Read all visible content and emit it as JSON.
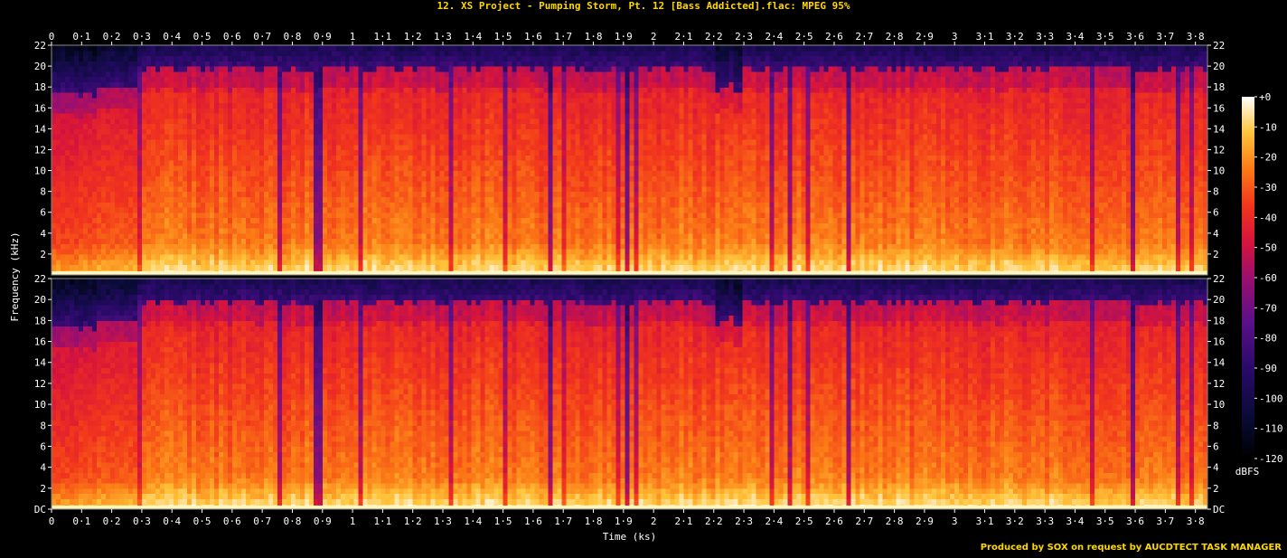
{
  "chart_data": {
    "type": "heatmap",
    "title": "12. XS Project - Pumping Storm, Pt. 12 [Bass Addicted].flac: MPEG 95%",
    "xlabel": "Time (ks)",
    "ylabel": "Frequency (kHz)",
    "xlim": [
      0,
      3.84
    ],
    "ylim": [
      0,
      22
    ],
    "x_ticks": [
      "0",
      "0·1",
      "0·2",
      "0·3",
      "0·4",
      "0·5",
      "0·6",
      "0·7",
      "0·8",
      "0·9",
      "1",
      "1·1",
      "1·2",
      "1·3",
      "1·4",
      "1·5",
      "1·6",
      "1·7",
      "1·8",
      "1·9",
      "2",
      "2·1",
      "2·2",
      "2·3",
      "2·4",
      "2·5",
      "2·6",
      "2·7",
      "2·8",
      "2·9",
      "3",
      "3·1",
      "3·2",
      "3·3",
      "3·4",
      "3·5",
      "3·6",
      "3·7",
      "3·8"
    ],
    "y_ticks_top": [
      "22",
      "20",
      "18",
      "16",
      "14",
      "12",
      "10",
      "8",
      "6",
      "4",
      "2"
    ],
    "y_ticks_bottom": [
      "22",
      "20",
      "18",
      "16",
      "14",
      "12",
      "10",
      "8",
      "6",
      "4",
      "2",
      "DC"
    ],
    "channels": 2,
    "colorbar": {
      "label": "dBFS",
      "ticks": [
        "+0",
        "-10",
        "-20",
        "-30",
        "-40",
        "-50",
        "-60",
        "-70",
        "-80",
        "-90",
        "-100",
        "-110",
        "-120"
      ],
      "range": [
        -120,
        0
      ]
    },
    "colors": {
      "title": "#ffd700",
      "axis": "#ffffff",
      "footer": "#ffd700"
    }
  },
  "footer": "Produced by SOX on request by AUCDTECT TASK MANAGER"
}
